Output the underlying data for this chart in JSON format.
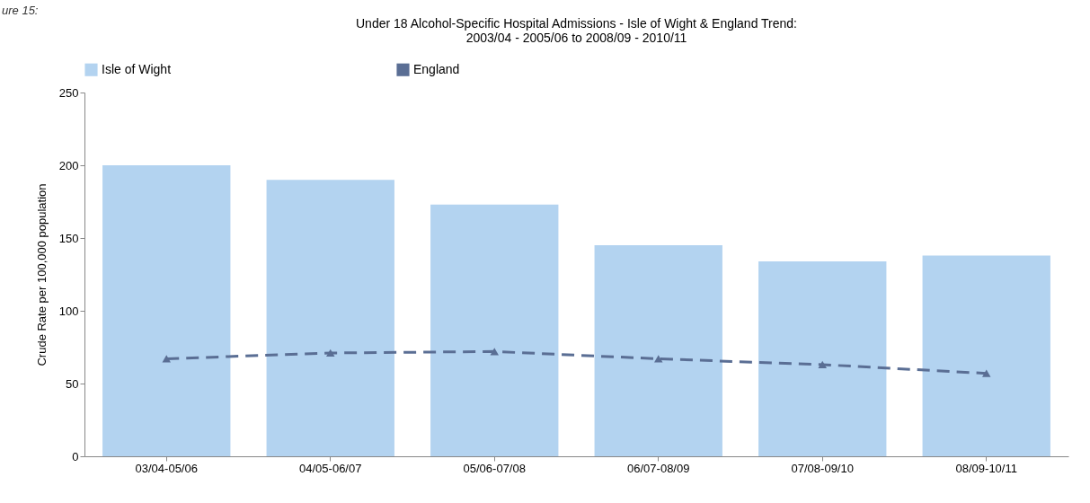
{
  "chart_data": {
    "type": "bar",
    "title": [
      "Under 18 Alcohol-Specific Hospital Admissions -  Isle of Wight & England Trend:",
      "2003/04 - 2005/06 to 2008/09 - 2010/11"
    ],
    "annotations": [
      "ure 15:"
    ],
    "ylabel": "Crude Rate per 100,000 population",
    "categories": [
      "03/04-05/06",
      "04/05-06/07",
      "05/06-07/08",
      "06/07-08/09",
      "07/08-09/10",
      "08/09-10/11"
    ],
    "series": [
      {
        "name": "Isle of Wight",
        "type": "bar",
        "color": "#b3d3f0",
        "values": [
          200,
          190,
          173,
          145,
          134,
          138
        ]
      },
      {
        "name": "England",
        "type": "line",
        "color": "#5a6e94",
        "line_style": "dashed",
        "marker": "triangle",
        "values": [
          67,
          71,
          72,
          67,
          63,
          57
        ]
      }
    ],
    "ylim": [
      0,
      250
    ],
    "yticks": [
      0,
      50,
      100,
      150,
      200,
      250
    ],
    "grid": false,
    "legend": "top"
  }
}
